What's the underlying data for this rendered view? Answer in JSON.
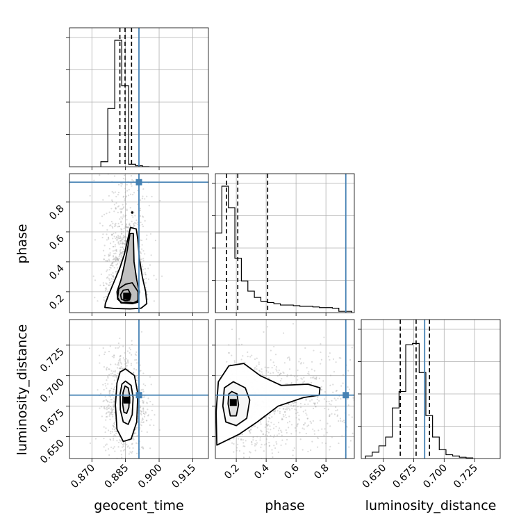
{
  "chart_data": {
    "type": "corner",
    "parameters": [
      "geocent_time",
      "phase",
      "luminosity_distance"
    ],
    "truth": {
      "geocent_time": 0.891,
      "phase": 0.933,
      "luminosity_distance": 0.684
    },
    "axis_labels": {
      "x": [
        "geocent_time",
        "phase",
        "luminosity_distance"
      ],
      "y": [
        "phase",
        "luminosity_distance"
      ]
    },
    "ranges": {
      "geocent_time": [
        0.86,
        0.922
      ],
      "phase": [
        0.06,
        0.99
      ],
      "luminosity_distance": [
        0.632,
        0.746
      ]
    },
    "ticks": {
      "geocent_time": [
        "0.870",
        "0.885",
        "0.900",
        "0.915"
      ],
      "phase_x": [
        "0.2",
        "0.4",
        "0.6",
        "0.8"
      ],
      "phase_y": [
        "0.2",
        "0.4",
        "0.6",
        "0.8"
      ],
      "luminosity_distance_x": [
        "0.650",
        "0.675",
        "0.700",
        "0.725"
      ],
      "luminosity_distance_y": [
        "0.650",
        "0.675",
        "0.700",
        "0.725"
      ]
    },
    "quantiles": {
      "geocent_time": [
        0.8825,
        0.8848,
        0.8877
      ],
      "phase": [
        0.135,
        0.21,
        0.41
      ],
      "luminosity_distance": [
        0.664,
        0.677,
        0.688
      ]
    },
    "histograms": {
      "geocent_time": {
        "edges": [
          0.874,
          0.8771,
          0.8802,
          0.8833,
          0.8864,
          0.8895,
          0.8926,
          0.8957
        ],
        "counts": [
          0.04,
          0.46,
          1.0,
          0.64,
          0.02,
          0.008,
          0
        ]
      },
      "phase": {
        "edges": [
          0.06,
          0.1035,
          0.147,
          0.1905,
          0.234,
          0.2775,
          0.321,
          0.3645,
          0.408,
          0.4515,
          0.495,
          0.5385,
          0.582,
          0.6255,
          0.669,
          0.7125,
          0.756,
          0.7995,
          0.843,
          0.8865,
          0.93,
          0.9735
        ],
        "counts": [
          0.63,
          1.0,
          0.83,
          0.43,
          0.25,
          0.17,
          0.12,
          0.09,
          0.08,
          0.07,
          0.06,
          0.06,
          0.055,
          0.05,
          0.05,
          0.045,
          0.04,
          0.04,
          0.035,
          0.01,
          0.01
        ]
      },
      "luminosity_distance": {
        "edges": [
          0.6355,
          0.641,
          0.6465,
          0.652,
          0.6575,
          0.663,
          0.6685,
          0.674,
          0.6795,
          0.685,
          0.6905,
          0.696,
          0.7015,
          0.707,
          0.7125,
          0.718,
          0.7235
        ],
        "counts": [
          0.02,
          0.05,
          0.1,
          0.17,
          0.4,
          0.53,
          0.9,
          0.91,
          0.68,
          0.34,
          0.17,
          0.07,
          0.03,
          0.02,
          0.01,
          0.005
        ]
      }
    },
    "contours": {
      "phase_vs_geocent_time": [
        [
          [
            0.8858,
            0.13
          ],
          [
            0.8885,
            0.125
          ],
          [
            0.8905,
            0.14
          ],
          [
            0.8912,
            0.2
          ],
          [
            0.89,
            0.28
          ],
          [
            0.8888,
            0.4
          ],
          [
            0.8886,
            0.52
          ],
          [
            0.8885,
            0.59
          ],
          [
            0.887,
            0.59
          ],
          [
            0.8858,
            0.48
          ],
          [
            0.8845,
            0.38
          ],
          [
            0.883,
            0.28
          ],
          [
            0.8812,
            0.2
          ],
          [
            0.8815,
            0.15
          ],
          [
            0.8835,
            0.125
          ]
        ],
        [
          [
            0.888,
            0.12
          ],
          [
            0.8906,
            0.13
          ],
          [
            0.8906,
            0.2
          ],
          [
            0.888,
            0.26
          ],
          [
            0.885,
            0.25
          ],
          [
            0.882,
            0.22
          ],
          [
            0.8815,
            0.16
          ],
          [
            0.883,
            0.125
          ]
        ],
        [
          [
            0.8848,
            0.14
          ],
          [
            0.8868,
            0.145
          ],
          [
            0.8874,
            0.18
          ],
          [
            0.8862,
            0.215
          ],
          [
            0.884,
            0.21
          ],
          [
            0.8828,
            0.18
          ],
          [
            0.8832,
            0.15
          ]
        ],
        [
          [
            0.8758,
            0.095
          ],
          [
            0.88,
            0.088
          ],
          [
            0.887,
            0.085
          ],
          [
            0.892,
            0.09
          ],
          [
            0.8945,
            0.12
          ],
          [
            0.894,
            0.2
          ],
          [
            0.8925,
            0.3
          ],
          [
            0.8912,
            0.42
          ],
          [
            0.8905,
            0.55
          ],
          [
            0.8898,
            0.62
          ],
          [
            0.8872,
            0.63
          ],
          [
            0.886,
            0.55
          ],
          [
            0.8845,
            0.45
          ],
          [
            0.8825,
            0.36
          ],
          [
            0.88,
            0.27
          ],
          [
            0.8775,
            0.18
          ],
          [
            0.876,
            0.12
          ]
        ]
      ],
      "luminosity_distance_vs_geocent_time": [
        [
          [
            0.8848,
            0.6915
          ],
          [
            0.8862,
            0.69
          ],
          [
            0.8868,
            0.684
          ],
          [
            0.8865,
            0.674
          ],
          [
            0.8855,
            0.669
          ],
          [
            0.8843,
            0.67
          ],
          [
            0.8837,
            0.677
          ],
          [
            0.8839,
            0.686
          ]
        ],
        [
          [
            0.885,
            0.6955
          ],
          [
            0.8875,
            0.692
          ],
          [
            0.8884,
            0.682
          ],
          [
            0.888,
            0.668
          ],
          [
            0.8862,
            0.66
          ],
          [
            0.884,
            0.662
          ],
          [
            0.8827,
            0.672
          ],
          [
            0.8826,
            0.685
          ],
          [
            0.8834,
            0.693
          ]
        ],
        [
          [
            0.885,
            0.7055
          ],
          [
            0.889,
            0.7
          ],
          [
            0.8905,
            0.685
          ],
          [
            0.89,
            0.662
          ],
          [
            0.8875,
            0.648
          ],
          [
            0.884,
            0.646
          ],
          [
            0.8812,
            0.656
          ],
          [
            0.8805,
            0.676
          ],
          [
            0.8812,
            0.694
          ],
          [
            0.8826,
            0.703
          ]
        ]
      ],
      "luminosity_distance_vs_phase": [
        [
          [
            0.17,
            0.687
          ],
          [
            0.205,
            0.685
          ],
          [
            0.215,
            0.676
          ],
          [
            0.2,
            0.667
          ],
          [
            0.16,
            0.667
          ],
          [
            0.145,
            0.677
          ],
          [
            0.15,
            0.685
          ]
        ],
        [
          [
            0.18,
            0.695
          ],
          [
            0.26,
            0.69
          ],
          [
            0.29,
            0.68
          ],
          [
            0.27,
            0.665
          ],
          [
            0.2,
            0.659
          ],
          [
            0.13,
            0.662
          ],
          [
            0.11,
            0.675
          ],
          [
            0.12,
            0.69
          ]
        ],
        [
          [
            0.15,
            0.708
          ],
          [
            0.25,
            0.71
          ],
          [
            0.36,
            0.7
          ],
          [
            0.5,
            0.692
          ],
          [
            0.68,
            0.693
          ],
          [
            0.76,
            0.69
          ],
          [
            0.755,
            0.684
          ],
          [
            0.65,
            0.682
          ],
          [
            0.48,
            0.675
          ],
          [
            0.34,
            0.662
          ],
          [
            0.22,
            0.652
          ],
          [
            0.07,
            0.643
          ],
          [
            0.065,
            0.67
          ],
          [
            0.08,
            0.695
          ]
        ]
      ]
    },
    "density_peaks": {
      "phase_vs_geocent_time": [
        0.8855,
        0.17
      ],
      "luminosity_distance_vs_geocent_time": [
        0.8856,
        0.68
      ],
      "luminosity_distance_vs_phase": [
        0.18,
        0.678
      ]
    },
    "outlier_markers": {
      "phase_vs_geocent_time": [
        0.888,
        0.73
      ]
    },
    "grid": true,
    "colors": {
      "truth": "#4682b4",
      "hist": "#000000",
      "contour": "#000000",
      "grid": "#b0b0b0",
      "quantile": "#000000",
      "points": "#9a9a9a"
    }
  }
}
